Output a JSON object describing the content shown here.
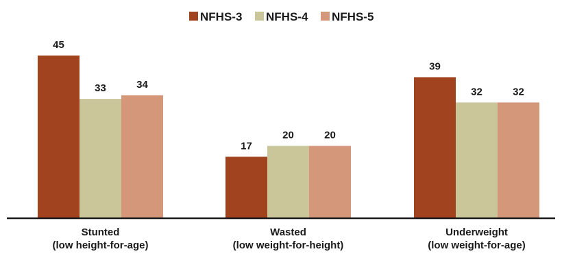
{
  "chart_data": {
    "type": "bar",
    "categories": [
      [
        "Stunted",
        "(low height-for-age)"
      ],
      [
        "Wasted",
        "(low weight-for-height)"
      ],
      [
        "Underweight",
        "(low weight-for-age)"
      ]
    ],
    "series": [
      {
        "name": "NFHS-3",
        "color": "#a0431e",
        "values": [
          45,
          17,
          39
        ]
      },
      {
        "name": "NFHS-4",
        "color": "#cbc59a",
        "values": [
          33,
          20,
          32
        ]
      },
      {
        "name": "NFHS-5",
        "color": "#d4977a",
        "values": [
          34,
          20,
          32
        ]
      }
    ],
    "title": "",
    "xlabel": "",
    "ylabel": "",
    "ylim": [
      0,
      50
    ],
    "grid": false,
    "legend_position": "top-center",
    "axis_color": "#1a1a1a"
  }
}
